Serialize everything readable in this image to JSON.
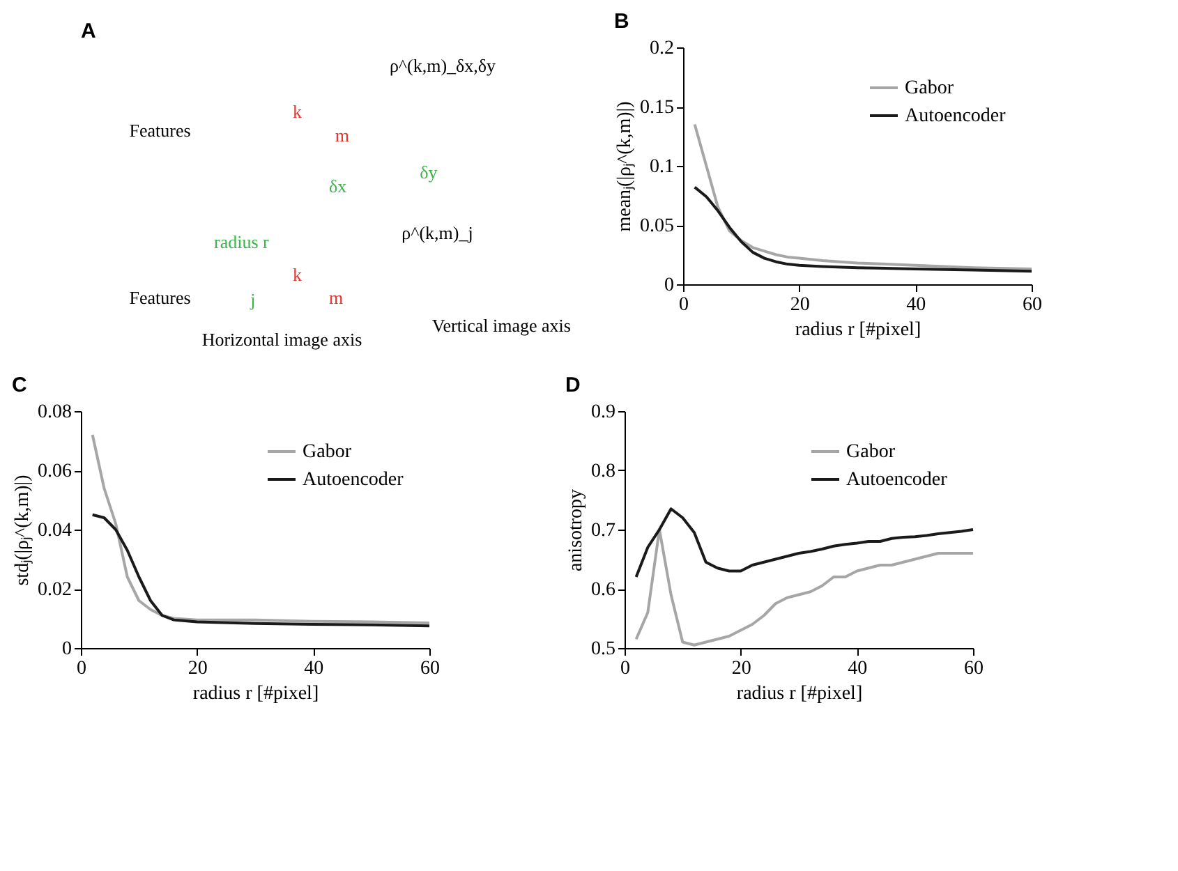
{
  "chart_data": [
    {
      "type": "other",
      "title": "A",
      "annotations": [
        "ρ^(k,m)_δx,δy",
        "k",
        "m",
        "Features",
        "δx",
        "δy",
        "ρ^(k,m)_j",
        "radius r",
        "k",
        "m",
        "j",
        "Features",
        "Horizontal image axis",
        "Vertical image axis"
      ]
    },
    {
      "type": "line",
      "title": "B",
      "xlabel": "radius r [#pixel]",
      "ylabel": "meanⱼ(|ρⱼ^(k,m)|)",
      "xlim": [
        0,
        60
      ],
      "xticks": [
        0,
        20,
        40,
        60
      ],
      "ylim": [
        0,
        0.2
      ],
      "yticks": [
        0,
        0.05,
        0.1,
        0.15,
        0.2
      ],
      "grid": false,
      "legend": "top right",
      "marker": "none",
      "line_style": "solid",
      "x": [
        2,
        4,
        6,
        8,
        10,
        12,
        14,
        16,
        18,
        20,
        24,
        30,
        40,
        50,
        60
      ],
      "series": [
        {
          "name": "Gabor",
          "color": "#a6a6a6",
          "values": [
            0.135,
            0.1,
            0.065,
            0.045,
            0.037,
            0.031,
            0.028,
            0.025,
            0.023,
            0.022,
            0.02,
            0.018,
            0.016,
            0.014,
            0.013
          ]
        },
        {
          "name": "Autoencoder",
          "color": "#1a1a1a",
          "values": [
            0.082,
            0.074,
            0.062,
            0.048,
            0.036,
            0.027,
            0.022,
            0.019,
            0.017,
            0.016,
            0.015,
            0.014,
            0.013,
            0.012,
            0.011
          ]
        }
      ]
    },
    {
      "type": "line",
      "title": "C",
      "xlabel": "radius r  [#pixel]",
      "ylabel": "stdⱼ(|ρⱼ^(k,m)|)",
      "xlim": [
        0,
        60
      ],
      "xticks": [
        0,
        20,
        40,
        60
      ],
      "ylim": [
        0,
        0.08
      ],
      "yticks": [
        0,
        0.02,
        0.04,
        0.06,
        0.08
      ],
      "grid": false,
      "legend": "top right",
      "marker": "none",
      "line_style": "solid",
      "x": [
        2,
        4,
        6,
        8,
        10,
        12,
        14,
        16,
        20,
        30,
        40,
        50,
        60
      ],
      "series": [
        {
          "name": "Gabor",
          "color": "#a6a6a6",
          "values": [
            0.072,
            0.054,
            0.042,
            0.024,
            0.016,
            0.013,
            0.011,
            0.01,
            0.0095,
            0.0095,
            0.009,
            0.0088,
            0.0085
          ]
        },
        {
          "name": "Autoencoder",
          "color": "#1a1a1a",
          "values": [
            0.045,
            0.044,
            0.04,
            0.033,
            0.024,
            0.016,
            0.011,
            0.0095,
            0.0088,
            0.0083,
            0.008,
            0.0078,
            0.0075
          ]
        }
      ]
    },
    {
      "type": "line",
      "title": "D",
      "xlabel": "radius r [#pixel]",
      "ylabel": "anisotropy",
      "xlim": [
        0,
        60
      ],
      "xticks": [
        0,
        20,
        40,
        60
      ],
      "ylim": [
        0.5,
        0.9
      ],
      "yticks": [
        0.5,
        0.6,
        0.7,
        0.8,
        0.9
      ],
      "grid": false,
      "legend": "top right",
      "marker": "none",
      "line_style": "solid",
      "x": [
        2,
        4,
        6,
        8,
        10,
        12,
        14,
        16,
        18,
        20,
        22,
        24,
        26,
        28,
        30,
        32,
        34,
        36,
        38,
        40,
        42,
        44,
        46,
        48,
        50,
        52,
        54,
        56,
        58,
        60
      ],
      "series": [
        {
          "name": "Gabor",
          "color": "#a6a6a6",
          "values": [
            0.515,
            0.56,
            0.7,
            0.59,
            0.51,
            0.505,
            0.51,
            0.515,
            0.52,
            0.53,
            0.54,
            0.555,
            0.575,
            0.585,
            0.59,
            0.595,
            0.605,
            0.62,
            0.62,
            0.63,
            0.635,
            0.64,
            0.64,
            0.645,
            0.65,
            0.655,
            0.66,
            0.66,
            0.66,
            0.66
          ]
        },
        {
          "name": "Autoencoder",
          "color": "#1a1a1a",
          "values": [
            0.62,
            0.67,
            0.7,
            0.735,
            0.72,
            0.695,
            0.645,
            0.635,
            0.63,
            0.63,
            0.64,
            0.645,
            0.65,
            0.655,
            0.66,
            0.663,
            0.667,
            0.672,
            0.675,
            0.677,
            0.68,
            0.68,
            0.685,
            0.687,
            0.688,
            0.69,
            0.693,
            0.695,
            0.697,
            0.7
          ]
        }
      ]
    }
  ]
}
